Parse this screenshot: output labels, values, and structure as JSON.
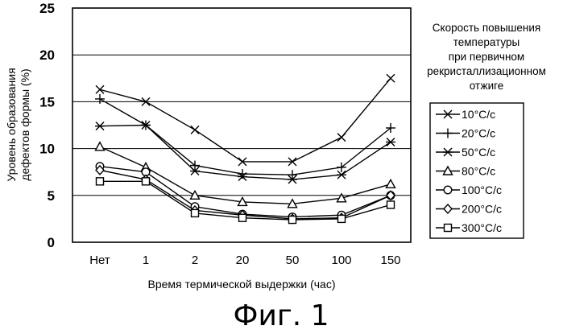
{
  "chart_data": {
    "type": "line",
    "categories": [
      "Нет",
      "1",
      "2",
      "20",
      "50",
      "100",
      "150"
    ],
    "xlabel": "Время термической выдержки (час)",
    "ylabel_lines": [
      "Уровень образования",
      "дефектов формы (%)"
    ],
    "ylim": [
      0,
      25
    ],
    "yticks": [
      0,
      5,
      10,
      15,
      20,
      25
    ],
    "grid": "horizontal",
    "legend_position": "right",
    "legend_title_lines": [
      "Скорость повышения",
      "температуры",
      "при первичном",
      "рекристаллизационном",
      "отжиге"
    ],
    "series": [
      {
        "name": "10°C/с",
        "marker": "x",
        "values": [
          16.3,
          15.0,
          12.0,
          8.6,
          8.6,
          11.2,
          17.5
        ]
      },
      {
        "name": "20°C/с",
        "marker": "plus",
        "values": [
          15.3,
          12.5,
          8.2,
          7.3,
          7.2,
          8.0,
          12.2
        ]
      },
      {
        "name": "50°C/с",
        "marker": "asterisk",
        "values": [
          12.4,
          12.5,
          7.6,
          7.0,
          6.7,
          7.2,
          10.7
        ]
      },
      {
        "name": "80°C/с",
        "marker": "triangle",
        "values": [
          10.2,
          8.0,
          5.0,
          4.3,
          4.1,
          4.7,
          6.2
        ]
      },
      {
        "name": "100°C/с",
        "marker": "circle",
        "values": [
          8.1,
          7.5,
          3.8,
          3.0,
          2.7,
          2.9,
          5.0
        ]
      },
      {
        "name": "200°C/с",
        "marker": "diamond",
        "values": [
          7.7,
          6.7,
          3.4,
          2.9,
          2.5,
          2.6,
          5.0
        ]
      },
      {
        "name": "300°C/с",
        "marker": "square",
        "values": [
          6.5,
          6.5,
          3.1,
          2.6,
          2.4,
          2.5,
          4.0
        ]
      }
    ]
  },
  "caption": "Фиг. 1"
}
